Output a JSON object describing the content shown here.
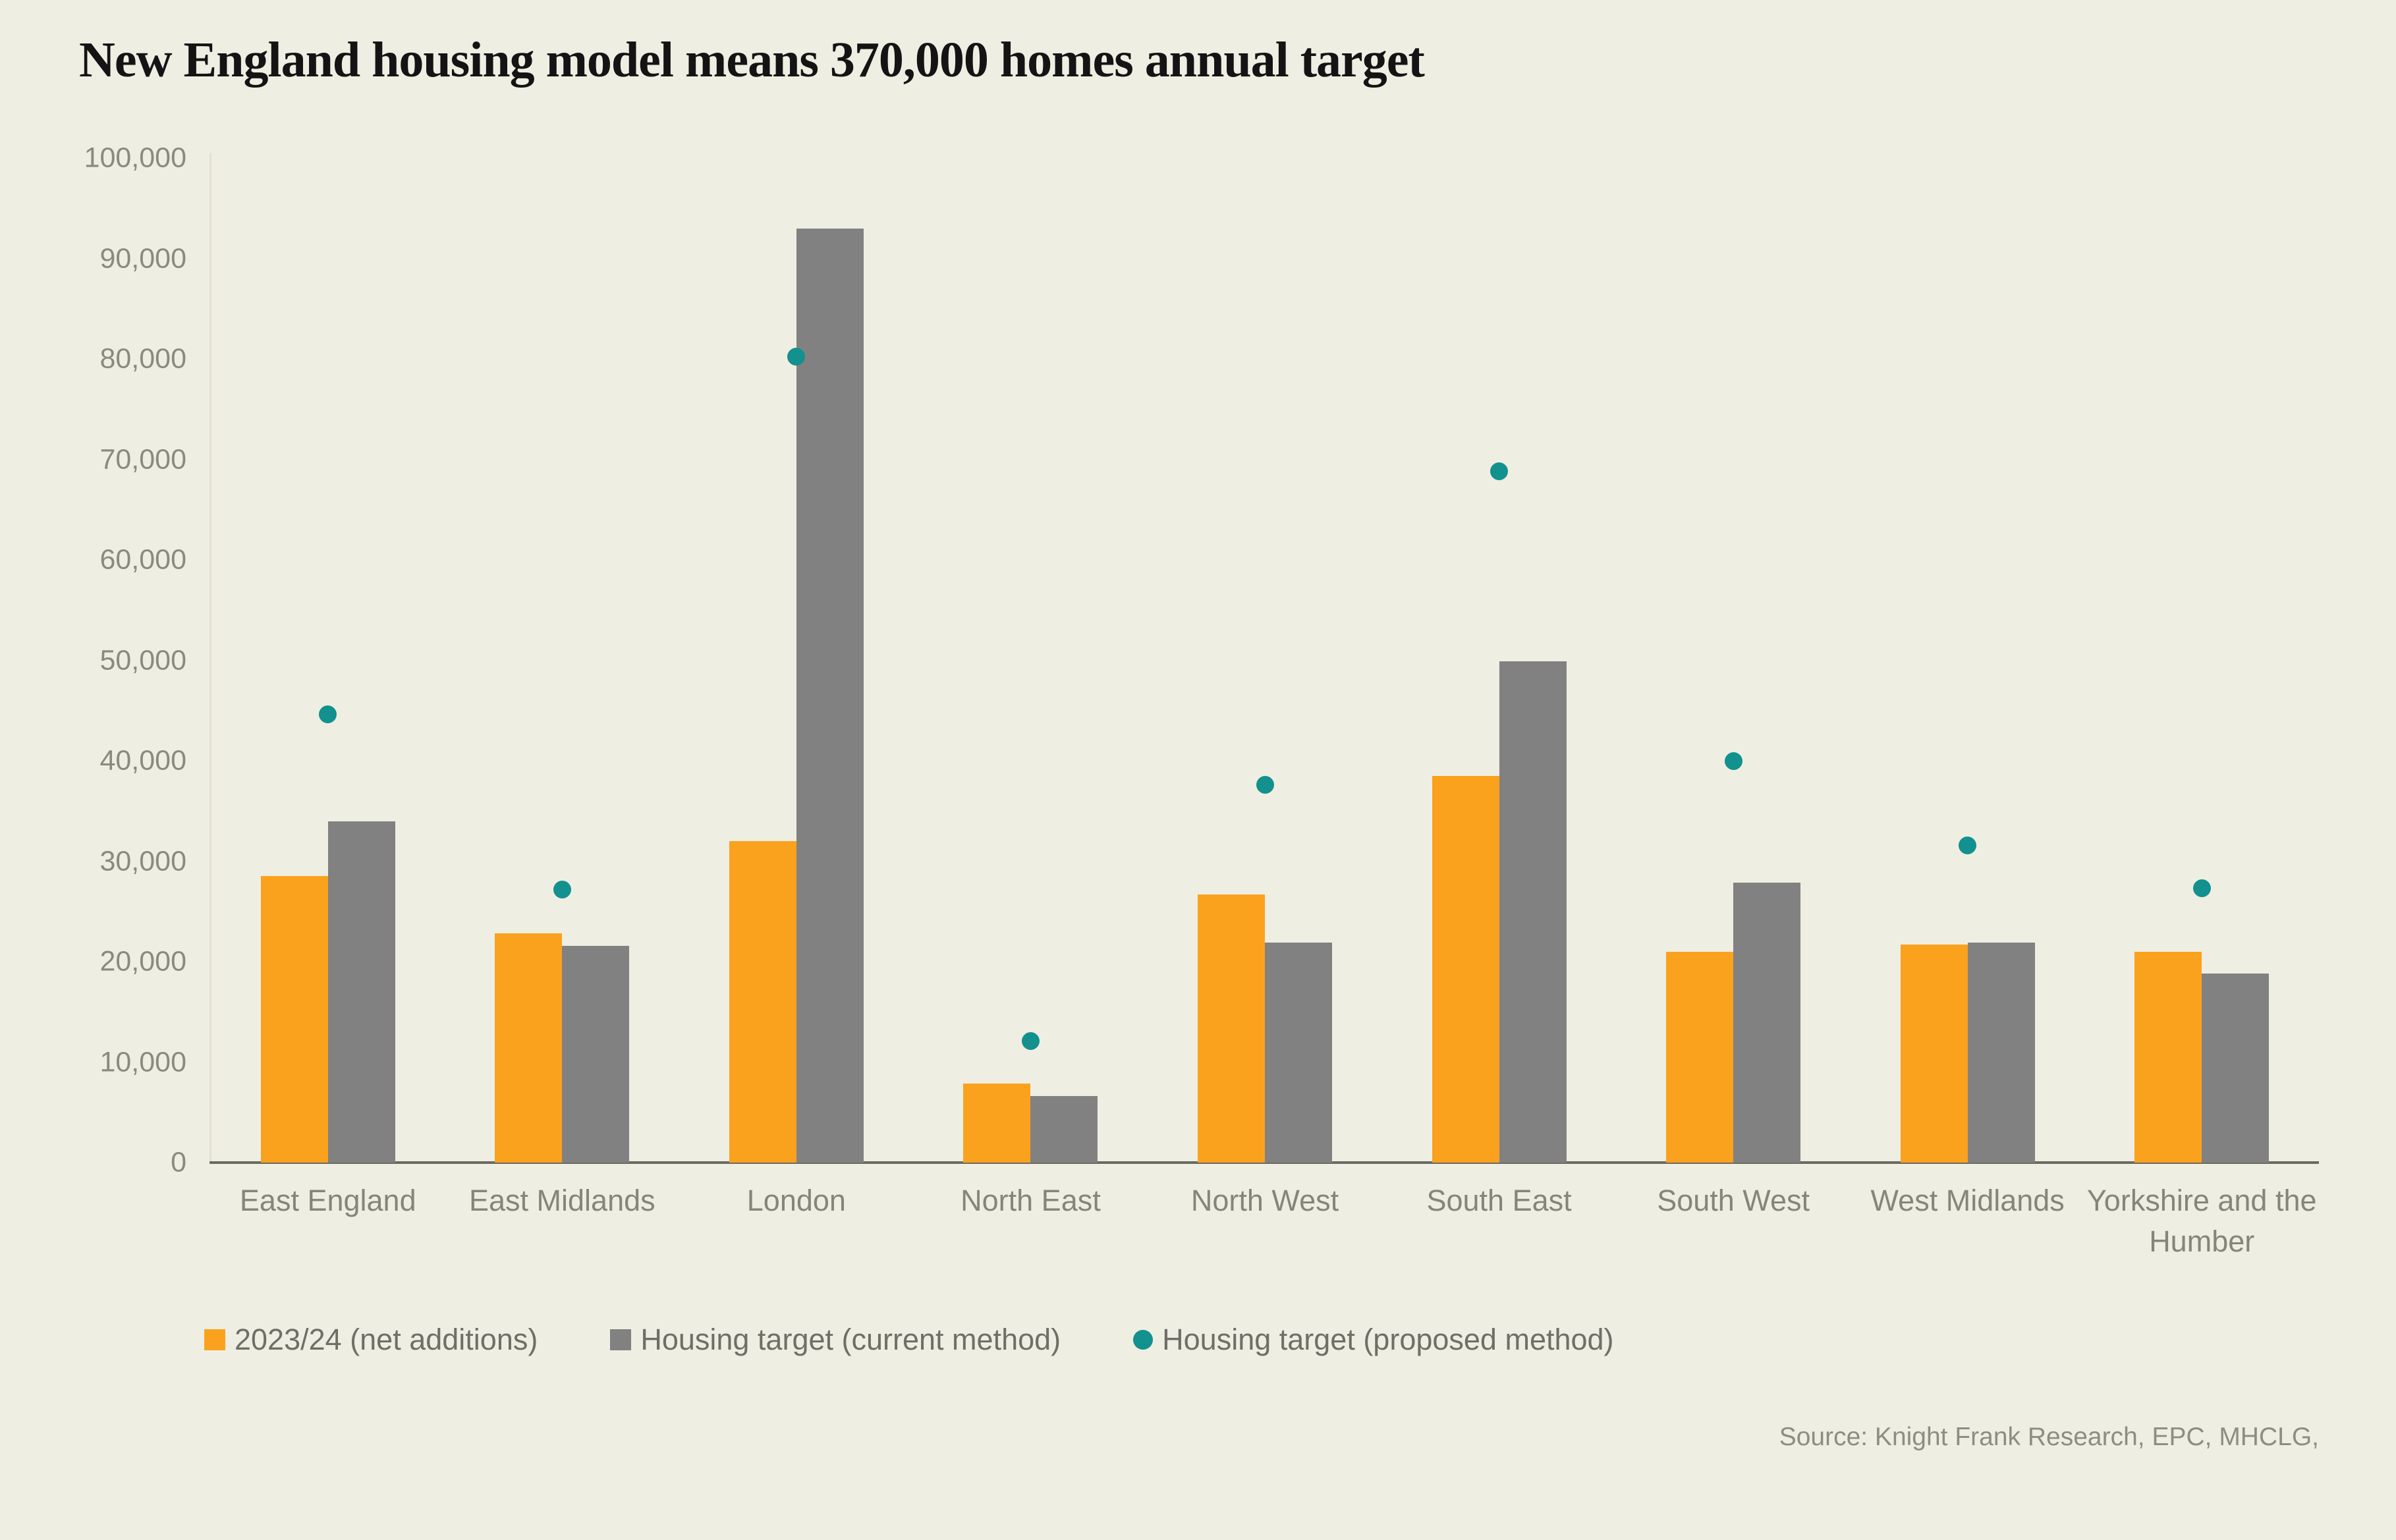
{
  "page": {
    "background": "#efeee2"
  },
  "title": {
    "text": "New England housing model means 370,000 homes annual target"
  },
  "source": {
    "text": "Source: Knight Frank Research, EPC, MHCLG,"
  },
  "legend": [
    {
      "label": "2023/24 (net additions)",
      "marker": "square",
      "color": "#faa21e"
    },
    {
      "label": "Housing target (current method)",
      "marker": "square",
      "color": "#818181"
    },
    {
      "label": "Housing target (proposed method)",
      "marker": "circle",
      "color": "#12918e"
    }
  ],
  "chart_data": {
    "type": "bar",
    "title": "New England housing model means 370,000 homes annual target",
    "xlabel": "",
    "ylabel": "",
    "ylim": [
      0,
      100000
    ],
    "ytick_step": 10000,
    "grid": false,
    "legend_position": "bottom",
    "categories": [
      "East England",
      "East Midlands",
      "London",
      "North East",
      "North West",
      "South East",
      "South West",
      "West Midlands",
      "Yorkshire and the Humber"
    ],
    "series": [
      {
        "name": "2023/24 (net additions)",
        "render": "bar",
        "color": "#faa21e",
        "values": [
          28500,
          22800,
          32000,
          7900,
          26700,
          38500,
          21000,
          21700,
          21000
        ]
      },
      {
        "name": "Housing target (current method)",
        "render": "bar",
        "color": "#818181",
        "values": [
          34000,
          21600,
          93000,
          6600,
          21900,
          49900,
          27900,
          21900,
          18800
        ]
      },
      {
        "name": "Housing target (proposed method)",
        "render": "point",
        "color": "#12918e",
        "values": [
          44600,
          27200,
          80200,
          12100,
          37600,
          68800,
          40000,
          31600,
          27300
        ]
      }
    ]
  }
}
